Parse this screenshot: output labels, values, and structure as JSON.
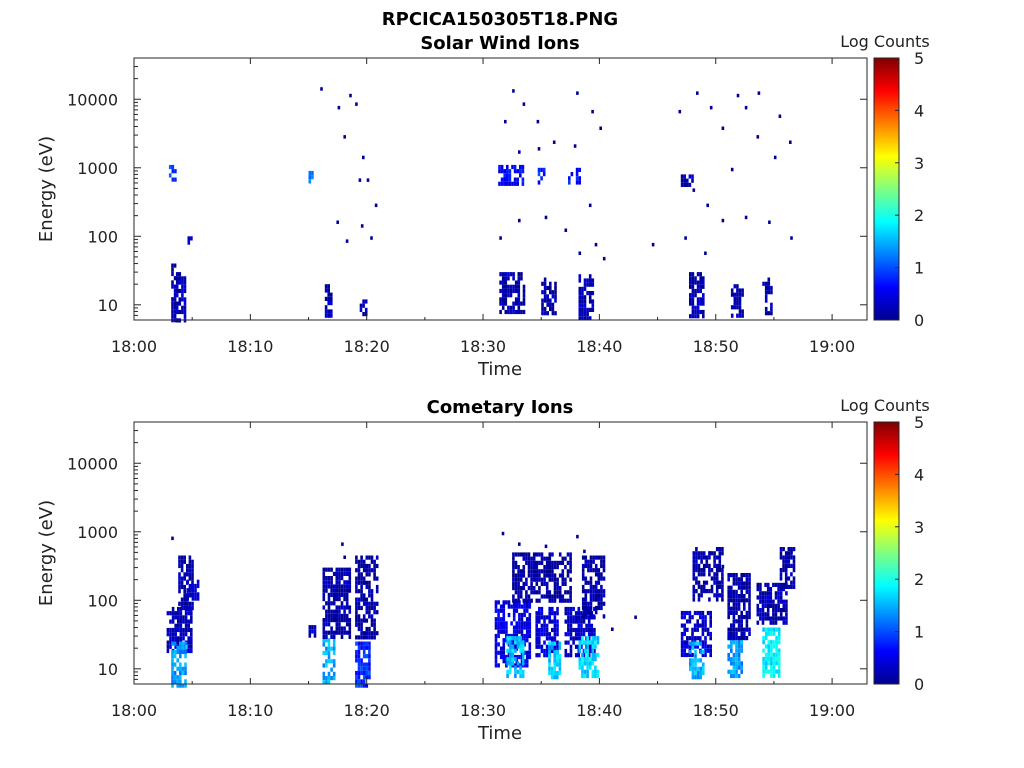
{
  "figure_title": "RPCICA150305T18.PNG",
  "colors": {
    "colormap": [
      "#00008f",
      "#0000ff",
      "#0080ff",
      "#00ffff",
      "#80ff80",
      "#ffff00",
      "#ff8000",
      "#ff0000",
      "#800000"
    ]
  },
  "chart_data": [
    {
      "type": "heatmap",
      "title": "Solar Wind Ions",
      "xlabel": "Time",
      "ylabel": "Energy (eV)",
      "colorbar_label": "Log Counts",
      "x_ticks": [
        "18:00",
        "18:10",
        "18:20",
        "18:30",
        "18:40",
        "18:50",
        "19:00"
      ],
      "y_ticks": [
        "10",
        "100",
        "1000",
        "10000"
      ],
      "colorbar_ticks": [
        "0",
        "1",
        "2",
        "3",
        "4",
        "5"
      ],
      "xlim_minutes": [
        0,
        63
      ],
      "ylim_eV": [
        6,
        40000
      ],
      "y_scale": "log",
      "clim": [
        0,
        5
      ],
      "patches": [
        {
          "t0": 3.0,
          "t1": 3.5,
          "e0": 650,
          "e1": 1100,
          "v": 0.9
        },
        {
          "t0": 3.2,
          "t1": 3.6,
          "e0": 6,
          "e1": 40,
          "v": 0.2
        },
        {
          "t0": 3.6,
          "t1": 4.4,
          "e0": 6,
          "e1": 30,
          "v": 0.25
        },
        {
          "t0": 4.6,
          "t1": 5.0,
          "e0": 85,
          "e1": 100,
          "v": 0.3
        },
        {
          "t0": 15.0,
          "t1": 15.3,
          "e0": 600,
          "e1": 900,
          "v": 1.2
        },
        {
          "t0": 16.4,
          "t1": 16.9,
          "e0": 7,
          "e1": 20,
          "v": 0.2
        },
        {
          "t0": 19.4,
          "t1": 19.9,
          "e0": 7,
          "e1": 12,
          "v": 0.2
        },
        {
          "t0": 31.3,
          "t1": 33.5,
          "e0": 600,
          "e1": 1100,
          "v": 0.6
        },
        {
          "t0": 34.7,
          "t1": 35.3,
          "e0": 650,
          "e1": 1000,
          "v": 0.8
        },
        {
          "t0": 37.3,
          "t1": 38.4,
          "e0": 600,
          "e1": 1000,
          "v": 0.7
        },
        {
          "t0": 31.4,
          "t1": 33.5,
          "e0": 8,
          "e1": 30,
          "v": 0.15
        },
        {
          "t0": 35.0,
          "t1": 36.2,
          "e0": 8,
          "e1": 25,
          "v": 0.15
        },
        {
          "t0": 38.2,
          "t1": 39.4,
          "e0": 6,
          "e1": 28,
          "v": 0.2
        },
        {
          "t0": 47.0,
          "t1": 47.9,
          "e0": 600,
          "e1": 800,
          "v": 0.2
        },
        {
          "t0": 47.7,
          "t1": 49.0,
          "e0": 7,
          "e1": 30,
          "v": 0.15
        },
        {
          "t0": 51.3,
          "t1": 52.2,
          "e0": 7,
          "e1": 20,
          "v": 0.15
        },
        {
          "t0": 54.0,
          "t1": 54.8,
          "e0": 8,
          "e1": 25,
          "v": 0.15
        }
      ],
      "scatter": [
        [
          16,
          15000
        ],
        [
          17.5,
          8000
        ],
        [
          18.0,
          3000
        ],
        [
          18.5,
          12000
        ],
        [
          19.0,
          9000
        ],
        [
          19.6,
          1500
        ],
        [
          20.0,
          700
        ],
        [
          20.7,
          300
        ],
        [
          19.5,
          150
        ],
        [
          17.4,
          170
        ],
        [
          19.3,
          700
        ],
        [
          18.2,
          90
        ],
        [
          20.3,
          100
        ],
        [
          32.5,
          14000
        ],
        [
          33.4,
          9000
        ],
        [
          36.0,
          2500
        ],
        [
          38.0,
          13000
        ],
        [
          39.3,
          7000
        ],
        [
          40.0,
          4000
        ],
        [
          34.6,
          5000
        ],
        [
          31.8,
          5000
        ],
        [
          37.8,
          2200
        ],
        [
          33.0,
          1800
        ],
        [
          34.7,
          2000
        ],
        [
          31.4,
          100
        ],
        [
          33.0,
          180
        ],
        [
          35.3,
          200
        ],
        [
          37.0,
          130
        ],
        [
          38.2,
          60
        ],
        [
          39.1,
          300
        ],
        [
          39.6,
          80
        ],
        [
          40.3,
          50
        ],
        [
          44.5,
          80
        ],
        [
          46.8,
          7000
        ],
        [
          48.3,
          13000
        ],
        [
          49.5,
          8000
        ],
        [
          50.5,
          4000
        ],
        [
          51.8,
          12000
        ],
        [
          52.5,
          8000
        ],
        [
          53.5,
          3000
        ],
        [
          53.6,
          13000
        ],
        [
          55.4,
          6000
        ],
        [
          56.3,
          2500
        ],
        [
          48.0,
          500
        ],
        [
          49.2,
          300
        ],
        [
          50.5,
          180
        ],
        [
          52.5,
          200
        ],
        [
          54.5,
          170
        ],
        [
          56.4,
          100
        ],
        [
          55.0,
          1500
        ],
        [
          51.3,
          1000
        ],
        [
          47.3,
          100
        ],
        [
          49.0,
          60
        ]
      ]
    },
    {
      "type": "heatmap",
      "title": "Cometary Ions",
      "xlabel": "Time",
      "ylabel": "Energy (eV)",
      "colorbar_label": "Log Counts",
      "x_ticks": [
        "18:00",
        "18:10",
        "18:20",
        "18:30",
        "18:40",
        "18:50",
        "19:00"
      ],
      "y_ticks": [
        "10",
        "100",
        "1000",
        "10000"
      ],
      "colorbar_ticks": [
        "0",
        "1",
        "2",
        "3",
        "4",
        "5"
      ],
      "xlim_minutes": [
        0,
        63
      ],
      "ylim_eV": [
        6,
        40000
      ],
      "y_scale": "log",
      "clim": [
        0,
        5
      ],
      "patches": [
        {
          "t0": 2.8,
          "t1": 5.0,
          "e0": 18,
          "e1": 80,
          "v": 0.25
        },
        {
          "t0": 3.8,
          "t1": 5.0,
          "e0": 80,
          "e1": 450,
          "v": 0.15
        },
        {
          "t0": 4.5,
          "t1": 5.5,
          "e0": 100,
          "e1": 200,
          "v": 0.3
        },
        {
          "t0": 3.2,
          "t1": 4.4,
          "e0": 6,
          "e1": 25,
          "v": 1.4
        },
        {
          "t0": 15.0,
          "t1": 15.5,
          "e0": 30,
          "e1": 50,
          "v": 0.2
        },
        {
          "t0": 16.2,
          "t1": 17.2,
          "e0": 6,
          "e1": 28,
          "v": 1.5
        },
        {
          "t0": 16.2,
          "t1": 18.5,
          "e0": 30,
          "e1": 300,
          "v": 0.12
        },
        {
          "t0": 19.0,
          "t1": 20.2,
          "e0": 6,
          "e1": 25,
          "v": 0.8
        },
        {
          "t0": 19.0,
          "t1": 21.0,
          "e0": 30,
          "e1": 450,
          "v": 0.12
        },
        {
          "t0": 31.0,
          "t1": 34.0,
          "e0": 12,
          "e1": 100,
          "v": 0.45
        },
        {
          "t0": 32.0,
          "t1": 33.5,
          "e0": 8,
          "e1": 30,
          "v": 1.6
        },
        {
          "t0": 34.5,
          "t1": 36.5,
          "e0": 15,
          "e1": 80,
          "v": 0.4
        },
        {
          "t0": 35.6,
          "t1": 36.5,
          "e0": 8,
          "e1": 25,
          "v": 1.6
        },
        {
          "t0": 37.0,
          "t1": 39.5,
          "e0": 15,
          "e1": 80,
          "v": 0.3
        },
        {
          "t0": 38.2,
          "t1": 39.8,
          "e0": 8,
          "e1": 30,
          "v": 1.7
        },
        {
          "t0": 38.5,
          "t1": 40.5,
          "e0": 60,
          "e1": 450,
          "v": 0.12
        },
        {
          "t0": 32.5,
          "t1": 37.5,
          "e0": 100,
          "e1": 500,
          "v": 0.1
        },
        {
          "t0": 47.0,
          "t1": 49.5,
          "e0": 15,
          "e1": 70,
          "v": 0.35
        },
        {
          "t0": 47.7,
          "t1": 49.0,
          "e0": 8,
          "e1": 25,
          "v": 1.5
        },
        {
          "t0": 51.0,
          "t1": 52.3,
          "e0": 8,
          "e1": 30,
          "v": 1.4
        },
        {
          "t0": 51.0,
          "t1": 53.0,
          "e0": 30,
          "e1": 250,
          "v": 0.12
        },
        {
          "t0": 54.0,
          "t1": 55.5,
          "e0": 8,
          "e1": 40,
          "v": 1.8
        },
        {
          "t0": 53.5,
          "t1": 56.0,
          "e0": 50,
          "e1": 180,
          "v": 0.15
        },
        {
          "t0": 48.0,
          "t1": 50.5,
          "e0": 100,
          "e1": 600,
          "v": 0.1
        },
        {
          "t0": 55.5,
          "t1": 56.8,
          "e0": 150,
          "e1": 600,
          "v": 0.15
        }
      ],
      "scatter": [
        [
          3.2,
          850
        ],
        [
          17.8,
          700
        ],
        [
          18.0,
          450
        ],
        [
          31.6,
          1000
        ],
        [
          33.0,
          700
        ],
        [
          35.3,
          650
        ],
        [
          38.0,
          900
        ],
        [
          38.6,
          550
        ],
        [
          49.4,
          520
        ],
        [
          50.5,
          330
        ],
        [
          56.4,
          550
        ],
        [
          41.0,
          40
        ],
        [
          43.0,
          60
        ]
      ]
    }
  ]
}
